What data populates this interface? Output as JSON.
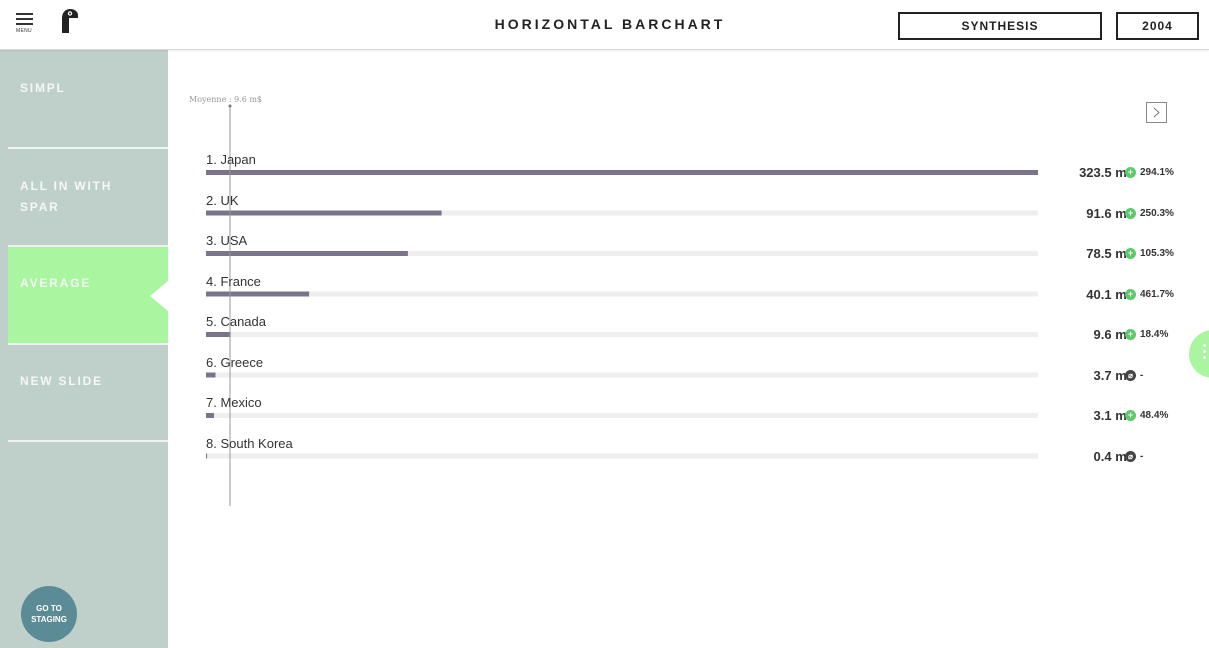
{
  "header": {
    "menu_label": "MENU",
    "title": "HORIZONTAL BARCHART",
    "synthesis_label": "SYNTHESIS",
    "year_label": "2004"
  },
  "sidebar": {
    "items": [
      {
        "label": "SIMPL",
        "active": false
      },
      {
        "label": "ALL IN WITH SPAR",
        "active": false
      },
      {
        "label": "AVERAGE",
        "active": true
      },
      {
        "label": "NEW SLIDE",
        "active": false
      }
    ],
    "staging_label": "GO TO STAGING"
  },
  "colors": {
    "bar": "#7b7389",
    "track": "#eeeeee",
    "sidebar": "#bfd0cb",
    "active": "#a9f5a0",
    "up": "#5cc96a"
  },
  "chart_data": {
    "type": "bar",
    "orientation": "horizontal",
    "average_label": "Moyenne : 9.6 m$",
    "average_value": 9.6,
    "xlim": [
      0,
      323.5
    ],
    "rows": [
      {
        "label": "1. Japan",
        "value": 323.5,
        "value_label": "323.5 m$",
        "change": "294.1%",
        "trend": "up"
      },
      {
        "label": "2. UK",
        "value": 91.6,
        "value_label": "91.6 m$",
        "change": "250.3%",
        "trend": "up"
      },
      {
        "label": "3. USA",
        "value": 78.5,
        "value_label": "78.5 m$",
        "change": "105.3%",
        "trend": "up"
      },
      {
        "label": "4. France",
        "value": 40.1,
        "value_label": "40.1 m$",
        "change": "461.7%",
        "trend": "up"
      },
      {
        "label": "5. Canada",
        "value": 9.6,
        "value_label": "9.6 m$",
        "change": "18.4%",
        "trend": "up"
      },
      {
        "label": "6. Greece",
        "value": 3.7,
        "value_label": "3.7 m$",
        "change": "-",
        "trend": "na"
      },
      {
        "label": "7. Mexico",
        "value": 3.1,
        "value_label": "3.1 m$",
        "change": "48.4%",
        "trend": "up"
      },
      {
        "label": "8. South Korea",
        "value": 0.4,
        "value_label": "0.4 m$",
        "change": "-",
        "trend": "na"
      }
    ]
  }
}
